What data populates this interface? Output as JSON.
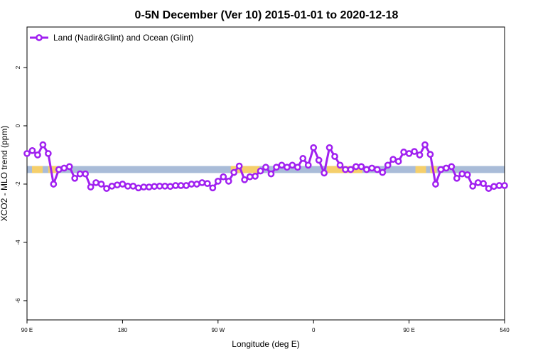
{
  "chart_data": {
    "type": "line",
    "title": "0-5N December (Ver 10)   2015-01-01 to 2020-12-18",
    "x_label": "Longitude (deg E)",
    "y_label": "XCO2 - MLO trend (ppm)",
    "x": [
      90,
      95,
      100,
      105,
      110,
      115,
      120,
      125,
      130,
      135,
      140,
      145,
      150,
      155,
      160,
      165,
      170,
      175,
      180,
      185,
      190,
      195,
      200,
      205,
      210,
      215,
      220,
      225,
      230,
      235,
      240,
      245,
      250,
      255,
      260,
      265,
      270,
      275,
      280,
      285,
      290,
      295,
      300,
      305,
      310,
      315,
      320,
      325,
      330,
      335,
      340,
      345,
      350,
      355,
      360,
      365,
      370,
      375,
      380,
      385,
      390,
      395,
      400,
      405,
      410,
      415,
      420,
      425,
      430,
      435,
      440,
      445,
      450,
      455,
      460,
      465,
      470,
      475,
      480,
      485,
      490,
      495,
      500,
      505,
      510,
      515,
      520,
      525,
      530,
      535,
      540
    ],
    "series": [
      {
        "name": "Land (Nadir&Glint) and Ocean (Glint)",
        "color": "#a020f0",
        "values": [
          -0.95,
          -0.85,
          -1.0,
          -0.65,
          -0.95,
          -2.0,
          -1.5,
          -1.45,
          -1.4,
          -1.8,
          -1.65,
          -1.65,
          -2.1,
          -1.95,
          -2.0,
          -2.15,
          -2.07,
          -2.03,
          -2.0,
          -2.07,
          -2.07,
          -2.13,
          -2.1,
          -2.1,
          -2.08,
          -2.07,
          -2.07,
          -2.08,
          -2.05,
          -2.05,
          -2.05,
          -2.0,
          -2.0,
          -1.95,
          -1.98,
          -2.13,
          -1.9,
          -1.75,
          -1.9,
          -1.6,
          -1.38,
          -1.85,
          -1.75,
          -1.73,
          -1.55,
          -1.42,
          -1.65,
          -1.42,
          -1.35,
          -1.42,
          -1.35,
          -1.42,
          -1.12,
          -1.35,
          -0.75,
          -1.18,
          -1.62,
          -0.75,
          -1.05,
          -1.35,
          -1.5,
          -1.5,
          -1.4,
          -1.4,
          -1.5,
          -1.45,
          -1.5,
          -1.6,
          -1.35,
          -1.15,
          -1.22,
          -0.9,
          -0.95,
          -0.88,
          -1.0,
          -0.65,
          -0.98,
          -2.0,
          -1.5,
          -1.45,
          -1.4,
          -1.8,
          -1.65,
          -1.68,
          -2.07,
          -1.95,
          -1.98,
          -2.15,
          -2.08,
          -2.05,
          -2.05
        ]
      }
    ],
    "band": {
      "range": [
        -1.62,
        -1.38
      ],
      "color": "#a9bcd8",
      "highlight_color": "#f5cf6b",
      "highlights": [
        [
          94.7,
          104.7
        ],
        [
          110,
          118
        ],
        [
          282,
          309
        ],
        [
          372.6,
          406
        ],
        [
          456,
          466
        ],
        [
          470,
          476
        ]
      ]
    },
    "xlim": [
      90,
      540
    ],
    "xticks": [
      {
        "value": 90,
        "label": "90 E"
      },
      180,
      {
        "value": 270,
        "label": "90 W"
      },
      {
        "value": 360,
        "label": "0"
      },
      {
        "value": 450,
        "label": "90 E"
      },
      540
    ],
    "ylim": [
      -6.66,
      3.39
    ],
    "yticks": [
      -6,
      -4,
      -2,
      0,
      2
    ],
    "legend": "top-left"
  }
}
